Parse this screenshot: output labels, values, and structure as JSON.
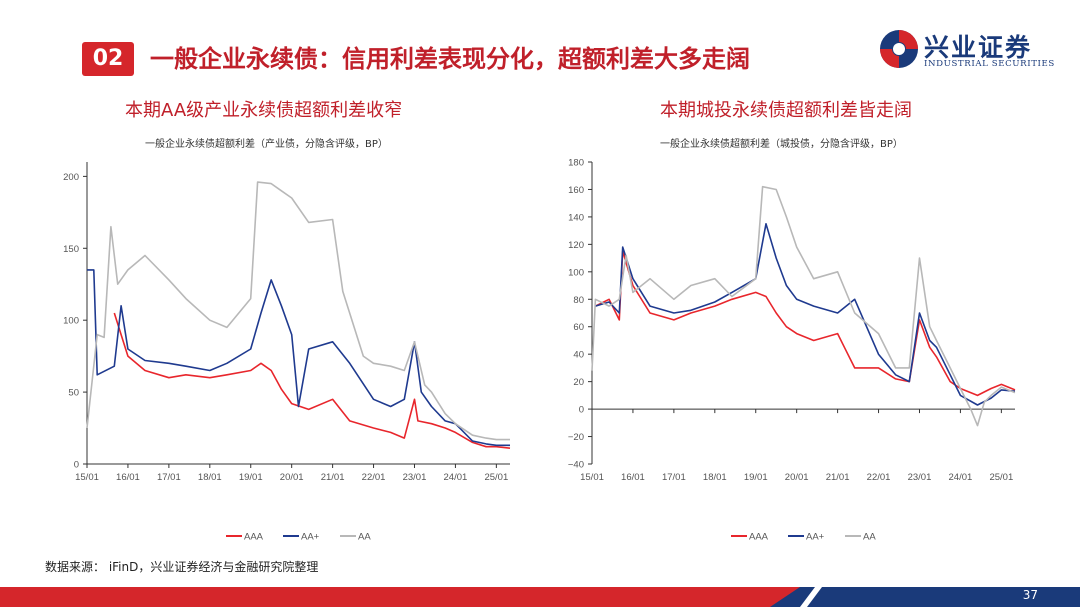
{
  "header": {
    "number": "02",
    "title": "一般企业永续债：信用利差表现分化，超额利差大多走阔"
  },
  "logo": {
    "cn": "兴业证券",
    "en": "INDUSTRIAL SECURITIES"
  },
  "colors": {
    "accent": "#d5262b",
    "navy": "#1a3a7a",
    "aaa": "#e8262c",
    "aaplus": "#1f3a8f",
    "aa": "#b8b8b8"
  },
  "left": {
    "title": "本期AA级产业永续债超额利差收窄",
    "subtitle": "一般企业永续债超额利差（产业债，分隐含评级，BP）"
  },
  "right": {
    "title": "本期城投永续债超额利差皆走阔",
    "subtitle": "一般企业永续债超额利差（城投债，分隐含评级，BP）"
  },
  "source": "数据来源： iFinD，兴业证券经济与金融研究院整理",
  "page": "37",
  "chart_data": [
    {
      "type": "line",
      "x_ticks": [
        "15/01",
        "16/01",
        "17/01",
        "18/01",
        "19/01",
        "20/01",
        "21/01",
        "22/01",
        "23/01",
        "24/01",
        "25/01"
      ],
      "y_ticks": [
        0,
        50,
        100,
        150,
        200
      ],
      "ylim": [
        0,
        210
      ],
      "xlim": [
        "2015-01",
        "2025-05"
      ],
      "legend_position": "bottom",
      "series": [
        {
          "name": "AAA",
          "color": "#e8262c",
          "points": [
            [
              "2015-02",
              null
            ],
            [
              "2015-06",
              null
            ],
            [
              "2015-09",
              105
            ],
            [
              "2015-11",
              90
            ],
            [
              "2016-01",
              75
            ],
            [
              "2016-06",
              65
            ],
            [
              "2017-01",
              60
            ],
            [
              "2017-06",
              62
            ],
            [
              "2018-01",
              60
            ],
            [
              "2018-06",
              62
            ],
            [
              "2019-01",
              65
            ],
            [
              "2019-04",
              70
            ],
            [
              "2019-07",
              65
            ],
            [
              "2019-10",
              52
            ],
            [
              "2020-01",
              42
            ],
            [
              "2020-06",
              38
            ],
            [
              "2021-01",
              45
            ],
            [
              "2021-06",
              30
            ],
            [
              "2022-01",
              25
            ],
            [
              "2022-06",
              22
            ],
            [
              "2022-10",
              18
            ],
            [
              "2023-01",
              45
            ],
            [
              "2023-02",
              30
            ],
            [
              "2023-06",
              28
            ],
            [
              "2023-10",
              25
            ],
            [
              "2024-01",
              22
            ],
            [
              "2024-06",
              15
            ],
            [
              "2024-10",
              12
            ],
            [
              "2025-01",
              12
            ],
            [
              "2025-05",
              11
            ]
          ]
        },
        {
          "name": "AA+",
          "color": "#1f3a8f",
          "points": [
            [
              "2015-01",
              135
            ],
            [
              "2015-03",
              135
            ],
            [
              "2015-04",
              62
            ],
            [
              "2015-09",
              68
            ],
            [
              "2015-11",
              110
            ],
            [
              "2016-01",
              80
            ],
            [
              "2016-06",
              72
            ],
            [
              "2017-01",
              70
            ],
            [
              "2017-06",
              68
            ],
            [
              "2018-01",
              65
            ],
            [
              "2018-06",
              70
            ],
            [
              "2019-01",
              80
            ],
            [
              "2019-04",
              105
            ],
            [
              "2019-07",
              128
            ],
            [
              "2019-10",
              110
            ],
            [
              "2020-01",
              90
            ],
            [
              "2020-03",
              40
            ],
            [
              "2020-06",
              80
            ],
            [
              "2021-01",
              85
            ],
            [
              "2021-06",
              70
            ],
            [
              "2022-01",
              45
            ],
            [
              "2022-06",
              40
            ],
            [
              "2022-10",
              45
            ],
            [
              "2023-01",
              85
            ],
            [
              "2023-03",
              50
            ],
            [
              "2023-06",
              40
            ],
            [
              "2023-10",
              30
            ],
            [
              "2024-01",
              28
            ],
            [
              "2024-06",
              16
            ],
            [
              "2024-10",
              14
            ],
            [
              "2025-01",
              13
            ],
            [
              "2025-05",
              13
            ]
          ]
        },
        {
          "name": "AA",
          "color": "#b8b8b8",
          "points": [
            [
              "2015-01",
              25
            ],
            [
              "2015-04",
              90
            ],
            [
              "2015-06",
              88
            ],
            [
              "2015-08",
              165
            ],
            [
              "2015-10",
              125
            ],
            [
              "2016-01",
              135
            ],
            [
              "2016-06",
              145
            ],
            [
              "2017-01",
              128
            ],
            [
              "2017-06",
              115
            ],
            [
              "2018-01",
              100
            ],
            [
              "2018-06",
              95
            ],
            [
              "2019-01",
              115
            ],
            [
              "2019-03",
              196
            ],
            [
              "2019-07",
              195
            ],
            [
              "2019-10",
              190
            ],
            [
              "2020-01",
              185
            ],
            [
              "2020-06",
              168
            ],
            [
              "2021-01",
              170
            ],
            [
              "2021-04",
              120
            ],
            [
              "2021-10",
              75
            ],
            [
              "2022-01",
              70
            ],
            [
              "2022-06",
              68
            ],
            [
              "2022-10",
              65
            ],
            [
              "2023-01",
              85
            ],
            [
              "2023-04",
              55
            ],
            [
              "2023-06",
              50
            ],
            [
              "2023-10",
              35
            ],
            [
              "2024-01",
              28
            ],
            [
              "2024-06",
              20
            ],
            [
              "2024-10",
              18
            ],
            [
              "2025-01",
              17
            ],
            [
              "2025-05",
              17
            ]
          ]
        }
      ]
    },
    {
      "type": "line",
      "x_ticks": [
        "15/01",
        "16/01",
        "17/01",
        "18/01",
        "19/01",
        "20/01",
        "21/01",
        "22/01",
        "23/01",
        "24/01",
        "25/01"
      ],
      "y_ticks": [
        -40,
        -20,
        0,
        20,
        40,
        60,
        80,
        100,
        120,
        140,
        160,
        180
      ],
      "ylim": [
        -40,
        180
      ],
      "xlim": [
        "2015-01",
        "2025-05"
      ],
      "legend_position": "bottom",
      "series": [
        {
          "name": "AAA",
          "color": "#e8262c",
          "points": [
            [
              "2015-02",
              75
            ],
            [
              "2015-06",
              80
            ],
            [
              "2015-09",
              65
            ],
            [
              "2015-10",
              115
            ],
            [
              "2016-01",
              90
            ],
            [
              "2016-06",
              70
            ],
            [
              "2017-01",
              65
            ],
            [
              "2017-06",
              70
            ],
            [
              "2018-01",
              75
            ],
            [
              "2018-06",
              80
            ],
            [
              "2019-01",
              85
            ],
            [
              "2019-04",
              82
            ],
            [
              "2019-07",
              70
            ],
            [
              "2019-10",
              60
            ],
            [
              "2020-01",
              55
            ],
            [
              "2020-06",
              50
            ],
            [
              "2021-01",
              55
            ],
            [
              "2021-03",
              45
            ],
            [
              "2021-06",
              30
            ],
            [
              "2022-01",
              30
            ],
            [
              "2022-06",
              22
            ],
            [
              "2022-10",
              20
            ],
            [
              "2023-01",
              65
            ],
            [
              "2023-04",
              45
            ],
            [
              "2023-06",
              38
            ],
            [
              "2023-10",
              20
            ],
            [
              "2024-01",
              15
            ],
            [
              "2024-06",
              10
            ],
            [
              "2024-10",
              15
            ],
            [
              "2025-01",
              18
            ],
            [
              "2025-05",
              14
            ]
          ]
        },
        {
          "name": "AA+",
          "color": "#1f3a8f",
          "points": [
            [
              "2015-02",
              75
            ],
            [
              "2015-06",
              78
            ],
            [
              "2015-09",
              70
            ],
            [
              "2015-10",
              118
            ],
            [
              "2016-01",
              95
            ],
            [
              "2016-06",
              75
            ],
            [
              "2017-01",
              70
            ],
            [
              "2017-06",
              72
            ],
            [
              "2018-01",
              78
            ],
            [
              "2018-06",
              85
            ],
            [
              "2019-01",
              95
            ],
            [
              "2019-04",
              135
            ],
            [
              "2019-07",
              110
            ],
            [
              "2019-10",
              90
            ],
            [
              "2020-01",
              80
            ],
            [
              "2020-06",
              75
            ],
            [
              "2021-01",
              70
            ],
            [
              "2021-06",
              80
            ],
            [
              "2022-01",
              40
            ],
            [
              "2022-06",
              25
            ],
            [
              "2022-10",
              20
            ],
            [
              "2023-01",
              70
            ],
            [
              "2023-04",
              50
            ],
            [
              "2023-06",
              45
            ],
            [
              "2023-10",
              25
            ],
            [
              "2024-01",
              10
            ],
            [
              "2024-06",
              3
            ],
            [
              "2024-10",
              8
            ],
            [
              "2025-01",
              14
            ],
            [
              "2025-05",
              13
            ]
          ]
        },
        {
          "name": "AA",
          "color": "#b8b8b8",
          "points": [
            [
              "2015-01",
              28
            ],
            [
              "2015-02",
              80
            ],
            [
              "2015-06",
              75
            ],
            [
              "2015-09",
              80
            ],
            [
              "2015-11",
              112
            ],
            [
              "2016-01",
              85
            ],
            [
              "2016-06",
              95
            ],
            [
              "2017-01",
              80
            ],
            [
              "2017-06",
              90
            ],
            [
              "2018-01",
              95
            ],
            [
              "2018-06",
              82
            ],
            [
              "2019-01",
              95
            ],
            [
              "2019-03",
              162
            ],
            [
              "2019-07",
              160
            ],
            [
              "2019-10",
              140
            ],
            [
              "2020-01",
              118
            ],
            [
              "2020-06",
              95
            ],
            [
              "2021-01",
              100
            ],
            [
              "2021-06",
              70
            ],
            [
              "2022-01",
              55
            ],
            [
              "2022-06",
              30
            ],
            [
              "2022-10",
              30
            ],
            [
              "2023-01",
              110
            ],
            [
              "2023-04",
              60
            ],
            [
              "2023-06",
              50
            ],
            [
              "2023-10",
              30
            ],
            [
              "2024-01",
              15
            ],
            [
              "2024-04",
              0
            ],
            [
              "2024-06",
              -12
            ],
            [
              "2024-08",
              5
            ],
            [
              "2024-10",
              10
            ],
            [
              "2025-01",
              16
            ],
            [
              "2025-05",
              12
            ]
          ]
        }
      ]
    }
  ]
}
